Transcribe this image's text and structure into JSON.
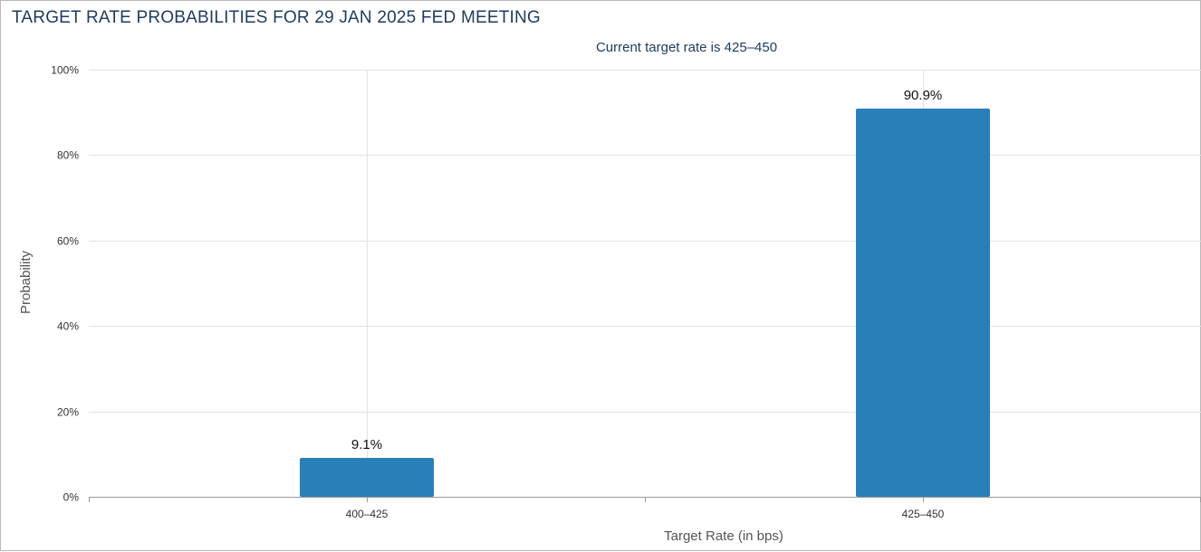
{
  "title": "TARGET RATE PROBABILITIES FOR 29 JAN 2025 FED MEETING",
  "chart_data": {
    "type": "bar",
    "title": "TARGET RATE PROBABILITIES FOR 29 JAN 2025 FED MEETING",
    "subtitle": "Current target rate is 425–450",
    "xlabel": "Target Rate (in bps)",
    "ylabel": "Probability",
    "categories": [
      "400–425",
      "425–450"
    ],
    "values": [
      9.1,
      90.9
    ],
    "data_labels": [
      "9.1%",
      "90.9%"
    ],
    "ylim": [
      0,
      100
    ],
    "yticks": [
      0,
      20,
      40,
      60,
      80,
      100
    ],
    "ytick_labels": [
      "0%",
      "20%",
      "40%",
      "60%",
      "80%",
      "100%"
    ],
    "grid": true,
    "bar_color": "#2980b9"
  }
}
